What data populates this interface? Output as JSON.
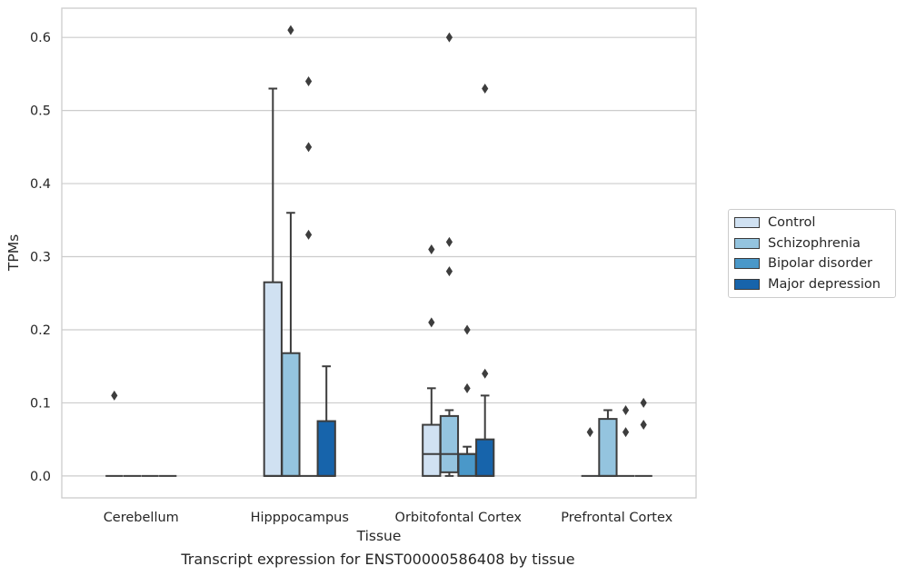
{
  "chart_data": {
    "type": "box",
    "xlabel": "Tissue",
    "ylabel": "TPMs",
    "ylim": [
      -0.03,
      0.64
    ],
    "yticks": [
      "0.0",
      "0.1",
      "0.2",
      "0.3",
      "0.4",
      "0.5",
      "0.6"
    ],
    "ytick_values": [
      0,
      0.1,
      0.2,
      0.3,
      0.4,
      0.5,
      0.6
    ],
    "grid": true,
    "legend_position": "right",
    "categories": [
      "Cerebellum",
      "Hipppocampus",
      "Orbitofontal Cortex",
      "Prefrontal Cortex"
    ],
    "series": [
      {
        "name": "Control",
        "color": "#d0e1f2",
        "boxes": [
          {
            "q1": 0,
            "median": 0,
            "q3": 0,
            "whisker_low": 0,
            "whisker_high": 0,
            "outliers": [
              0.11
            ]
          },
          {
            "q1": 0,
            "median": 0,
            "q3": 0.265,
            "whisker_low": 0,
            "whisker_high": 0.53,
            "outliers": []
          },
          {
            "q1": 0,
            "median": 0.03,
            "q3": 0.07,
            "whisker_low": 0,
            "whisker_high": 0.12,
            "outliers": [
              0.21,
              0.31
            ]
          },
          {
            "q1": 0,
            "median": 0,
            "q3": 0,
            "whisker_low": 0,
            "whisker_high": 0,
            "outliers": [
              0.06
            ]
          }
        ]
      },
      {
        "name": "Schizophrenia",
        "color": "#94c4df",
        "boxes": [
          {
            "q1": 0,
            "median": 0,
            "q3": 0,
            "whisker_low": 0,
            "whisker_high": 0,
            "outliers": []
          },
          {
            "q1": 0,
            "median": 0,
            "q3": 0.168,
            "whisker_low": 0,
            "whisker_high": 0.36,
            "outliers": [
              0.61
            ]
          },
          {
            "q1": 0.005,
            "median": 0.03,
            "q3": 0.082,
            "whisker_low": 0,
            "whisker_high": 0.09,
            "outliers": [
              0.28,
              0.32,
              0.6
            ]
          },
          {
            "q1": 0,
            "median": 0,
            "q3": 0.078,
            "whisker_low": 0,
            "whisker_high": 0.09,
            "outliers": []
          }
        ]
      },
      {
        "name": "Bipolar disorder",
        "color": "#4a98c9",
        "boxes": [
          {
            "q1": 0,
            "median": 0,
            "q3": 0,
            "whisker_low": 0,
            "whisker_high": 0,
            "outliers": []
          },
          {
            "q1": 0,
            "median": 0,
            "q3": 0,
            "whisker_low": 0,
            "whisker_high": 0,
            "outliers": [
              0.33,
              0.45,
              0.54
            ]
          },
          {
            "q1": 0,
            "median": 0.03,
            "q3": 0.03,
            "whisker_low": 0,
            "whisker_high": 0.04,
            "outliers": [
              0.12,
              0.2
            ]
          },
          {
            "q1": 0,
            "median": 0,
            "q3": 0,
            "whisker_low": 0,
            "whisker_high": 0,
            "outliers": [
              0.06,
              0.09
            ]
          }
        ]
      },
      {
        "name": "Major depression",
        "color": "#1764ab",
        "boxes": [
          {
            "q1": 0,
            "median": 0,
            "q3": 0,
            "whisker_low": 0,
            "whisker_high": 0,
            "outliers": []
          },
          {
            "q1": 0,
            "median": 0,
            "q3": 0.075,
            "whisker_low": 0,
            "whisker_high": 0.15,
            "outliers": []
          },
          {
            "q1": 0,
            "median": 0,
            "q3": 0.05,
            "whisker_low": 0,
            "whisker_high": 0.11,
            "outliers": [
              0.14,
              0.53
            ]
          },
          {
            "q1": 0,
            "median": 0,
            "q3": 0,
            "whisker_low": 0,
            "whisker_high": 0,
            "outliers": [
              0.07,
              0.1
            ]
          }
        ]
      }
    ]
  },
  "legend": {
    "items": [
      {
        "label": "Control",
        "color": "#d0e1f2"
      },
      {
        "label": "Schizophrenia",
        "color": "#94c4df"
      },
      {
        "label": "Bipolar disorder",
        "color": "#4a98c9"
      },
      {
        "label": "Major depression",
        "color": "#1764ab"
      }
    ]
  },
  "caption": "Transcript expression for ENST00000586408 by tissue"
}
